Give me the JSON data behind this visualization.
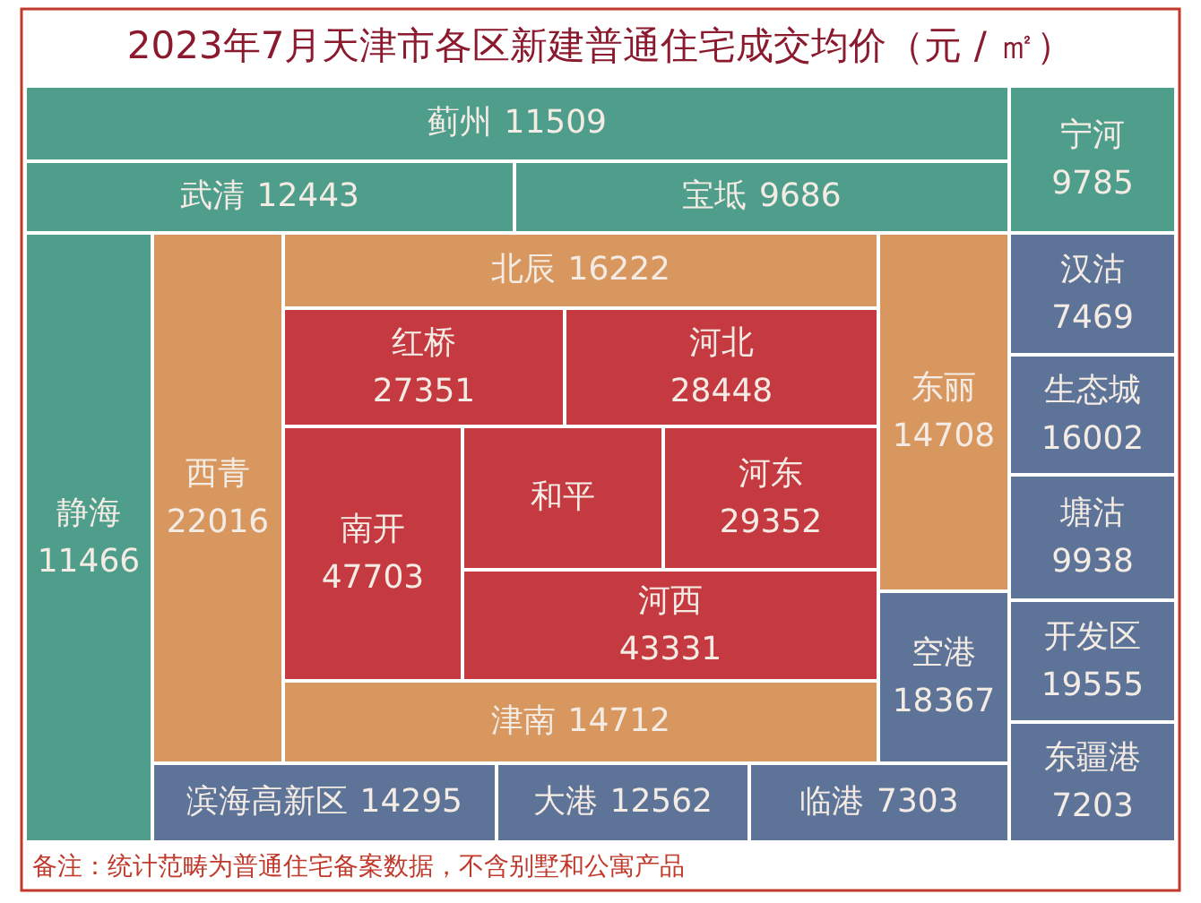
{
  "chart_data": {
    "type": "other",
    "title": "2023年7月天津市各区新建普通住宅成交均价（元 / ㎡）",
    "categories": [
      "蓟州",
      "武清",
      "宝坻",
      "宁河",
      "静海",
      "西青",
      "北辰",
      "红桥",
      "河北",
      "南开",
      "和平",
      "河东",
      "河西",
      "东丽",
      "津南",
      "空港",
      "滨海高新区",
      "大港",
      "临港",
      "汉沽",
      "生态城",
      "塘沽",
      "开发区",
      "东疆港"
    ],
    "values": [
      11509,
      12443,
      9686,
      9785,
      11466,
      22016,
      16222,
      27351,
      28448,
      47703,
      null,
      29352,
      43331,
      14708,
      14712,
      18367,
      14295,
      12562,
      7303,
      7469,
      16002,
      9938,
      19555,
      7203
    ],
    "colors": [
      "#4f9e8b",
      "#4f9e8b",
      "#4f9e8b",
      "#4f9e8b",
      "#4f9e8b",
      "#d99760",
      "#d99760",
      "#c43a40",
      "#c43a40",
      "#c43a40",
      "#c43a40",
      "#c43a40",
      "#c43a40",
      "#d99760",
      "#d99760",
      "#5d7398",
      "#5d7398",
      "#5d7398",
      "#5d7398",
      "#5d7398",
      "#5d7398",
      "#5d7398",
      "#5d7398",
      "#5d7398"
    ],
    "data_labels": true,
    "annotations": [
      "备注：统计范畴为普通住宅备案数据，不含别墅和公寓产品"
    ]
  }
}
